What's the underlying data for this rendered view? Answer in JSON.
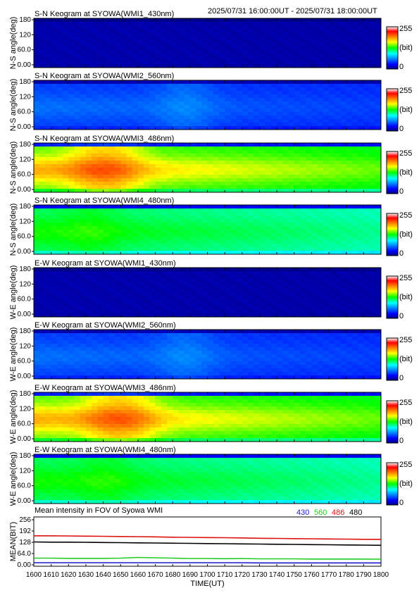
{
  "header": {
    "time_range": "2025/07/31 16:00:00UT - 2025/07/31 18:00:00UT"
  },
  "colorbar": {
    "max_label": "255",
    "unit_label": "(bit)",
    "min_label": "0"
  },
  "keograms": [
    {
      "title": "S-N Keogram at SYOWA(WMI1_430nm)",
      "ylabel": "N-S angle(deg)",
      "yticks": [
        "180",
        "120",
        "60.0",
        "0.00"
      ],
      "level": 0.04,
      "enhance_times": [],
      "enhance": 0.0
    },
    {
      "title": "S-N Keogram at SYOWA(WMI2_560nm)",
      "ylabel": "N-S angle(deg)",
      "yticks": [
        "180",
        "120",
        "60.0",
        "0.00"
      ],
      "level": 0.17,
      "enhance_times": [
        1650,
        1655
      ],
      "enhance": 0.05
    },
    {
      "title": "S-N Keogram at SYOWA(WMI3_486nm)",
      "ylabel": "N-S angle(deg)",
      "yticks": [
        "180",
        "120",
        "60.0",
        "0.00"
      ],
      "level": 0.55,
      "enhance_times": [
        1620,
        1630
      ],
      "enhance": 0.17
    },
    {
      "title": "S-N Keogram at SYOWA(WMI4_480nm)",
      "ylabel": "N-S angle(deg)",
      "yticks": [
        "180",
        "120",
        "60.0",
        "0.00"
      ],
      "level": 0.45,
      "enhance_times": [
        1620
      ],
      "enhance": 0.06
    },
    {
      "title": "E-W Keogram at SYOWA(WMI1_430nm)",
      "ylabel": "W-E angle(deg)",
      "yticks": [
        "180",
        "120",
        "60.0",
        "0.00"
      ],
      "level": 0.04,
      "enhance_times": [],
      "enhance": 0.0
    },
    {
      "title": "E-W Keogram at SYOWA(WMI2_560nm)",
      "ylabel": "W-E angle(deg)",
      "yticks": [
        "180",
        "120",
        "60.0",
        "0.00"
      ],
      "level": 0.17,
      "enhance_times": [
        1650,
        1655
      ],
      "enhance": 0.05
    },
    {
      "title": "E-W Keogram at SYOWA(WMI3_486nm)",
      "ylabel": "W-E angle(deg)",
      "yticks": [
        "180",
        "120",
        "60.0",
        "0.00"
      ],
      "level": 0.55,
      "enhance_times": [
        1625,
        1635
      ],
      "enhance": 0.17
    },
    {
      "title": "E-W Keogram at SYOWA(WMI4_480nm)",
      "ylabel": "W-E angle(deg)",
      "yticks": [
        "180",
        "120",
        "60.0",
        "0.00"
      ],
      "level": 0.45,
      "enhance_times": [
        1625
      ],
      "enhance": 0.06
    }
  ],
  "chart_data": {
    "type": "line",
    "title": "Mean intensity in FOV of Syowa WMI",
    "xlabel": "TIME(UT)",
    "ylabel": "MEAN(BIT)",
    "x": [
      1600,
      1610,
      1620,
      1630,
      1640,
      1650,
      1660,
      1670,
      1680,
      1690,
      1700,
      1710,
      1720,
      1730,
      1740,
      1750,
      1760,
      1770,
      1780,
      1790,
      1800
    ],
    "xlim": [
      1600,
      1800
    ],
    "ylim": [
      0,
      256
    ],
    "xticks": [
      "1600",
      "1610",
      "1620",
      "1630",
      "1640",
      "1650",
      "1660",
      "1670",
      "1680",
      "1690",
      "1700",
      "1710",
      "1720",
      "1730",
      "1740",
      "1750",
      "1760",
      "1770",
      "1780",
      "1790",
      "1800"
    ],
    "yticks": [
      "256",
      "192",
      "128",
      "64.0",
      "0.00"
    ],
    "series": [
      {
        "name": "430",
        "color": "#1a1acc",
        "values": [
          12,
          12,
          12,
          12,
          12,
          12,
          12,
          12,
          12,
          12,
          12,
          12,
          12,
          11,
          11,
          11,
          11,
          11,
          11,
          11,
          11
        ]
      },
      {
        "name": "560",
        "color": "#22cc22",
        "values": [
          38,
          38,
          37,
          37,
          37,
          38,
          42,
          40,
          38,
          36,
          36,
          35,
          36,
          34,
          34,
          34,
          33,
          33,
          33,
          33,
          32
        ]
      },
      {
        "name": "486",
        "color": "#dd1111",
        "values": [
          165,
          165,
          164,
          163,
          162,
          161,
          160,
          159,
          157,
          156,
          155,
          154,
          153,
          151,
          150,
          149,
          148,
          147,
          146,
          145,
          145
        ]
      },
      {
        "name": "480",
        "color": "#000000",
        "values": [
          130,
          129,
          129,
          128,
          127,
          126,
          125,
          124,
          123,
          122,
          121,
          120,
          119,
          118,
          117,
          116,
          115,
          114,
          113,
          112,
          111
        ]
      }
    ]
  }
}
